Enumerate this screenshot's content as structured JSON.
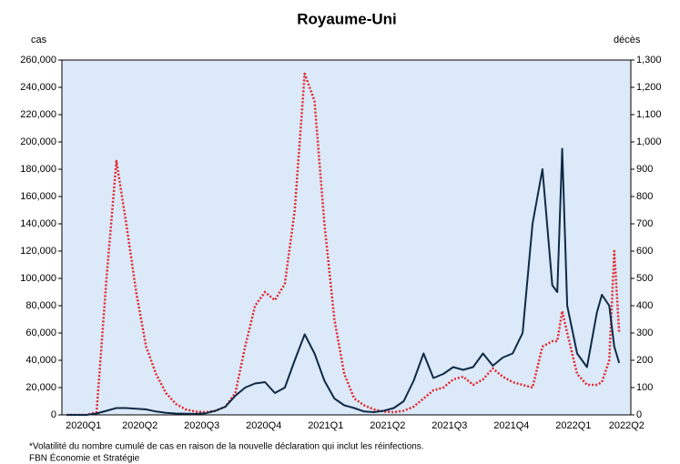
{
  "chart_data": {
    "type": "line",
    "title": "Royaume-Uni",
    "y_label": "cas",
    "y2_label": "décès",
    "notes": [
      "*Volatilité du nombre cumulé de cas en raison de la nouvelle déclaration qui inclut les réinfections.",
      "FBN Économie et Stratégie"
    ],
    "background": "#dce9f8",
    "x": [
      2020.08,
      2020.12,
      2020.16,
      2020.2,
      2020.24,
      2020.28,
      2020.32,
      2020.36,
      2020.4,
      2020.44,
      2020.48,
      2020.52,
      2020.56,
      2020.6,
      2020.64,
      2020.68,
      2020.72,
      2020.76,
      2020.8,
      2020.84,
      2020.88,
      2020.92,
      2020.96,
      2021.0,
      2021.04,
      2021.08,
      2021.12,
      2021.16,
      2021.2,
      2021.24,
      2021.28,
      2021.32,
      2021.36,
      2021.4,
      2021.44,
      2021.48,
      2021.52,
      2021.56,
      2021.6,
      2021.64,
      2021.68,
      2021.72,
      2021.76,
      2021.8,
      2021.84,
      2021.88,
      2021.92,
      2021.96,
      2022.0,
      2022.04,
      2022.06,
      2022.08,
      2022.1,
      2022.14,
      2022.18,
      2022.22,
      2022.24,
      2022.27,
      2022.29,
      2022.31
    ],
    "series": [
      {
        "name": "cas",
        "color": "#0e2a47",
        "dash": "solid",
        "values": [
          0,
          0,
          0,
          1000,
          3000,
          5000,
          5000,
          4500,
          4000,
          2500,
          1500,
          1000,
          800,
          700,
          1200,
          3000,
          6000,
          14000,
          20000,
          23000,
          24000,
          16000,
          20000,
          40000,
          59000,
          45000,
          25000,
          12000,
          7000,
          5000,
          2500,
          2000,
          3000,
          5000,
          10000,
          25000,
          45000,
          27000,
          30000,
          35000,
          33000,
          35000,
          45000,
          36000,
          42000,
          45000,
          60000,
          140000,
          180000,
          95000,
          90000,
          195000,
          80000,
          45000,
          35000,
          75000,
          88000,
          80000,
          50000,
          38000
        ]
      },
      {
        "name": "décès",
        "color": "#e3262c",
        "dash": "dotted",
        "axis": "y2",
        "values": [
          0,
          0,
          0,
          10,
          500,
          930,
          700,
          450,
          250,
          150,
          80,
          40,
          20,
          12,
          10,
          15,
          30,
          80,
          250,
          400,
          450,
          420,
          480,
          750,
          1250,
          1150,
          700,
          350,
          150,
          60,
          35,
          20,
          12,
          10,
          15,
          30,
          60,
          90,
          100,
          130,
          140,
          110,
          130,
          170,
          140,
          120,
          110,
          100,
          250,
          270,
          270,
          380,
          300,
          150,
          110,
          110,
          120,
          200,
          600,
          300
        ]
      }
    ],
    "xlim": [
      2020.06,
      2022.357
    ],
    "xticks": [
      {
        "value": 2020.147,
        "label": "2020Q1"
      },
      {
        "value": 2020.375,
        "label": "2020Q2"
      },
      {
        "value": 2020.625,
        "label": "2020Q3"
      },
      {
        "value": 2020.875,
        "label": "2020Q4"
      },
      {
        "value": 2021.125,
        "label": "2021Q1"
      },
      {
        "value": 2021.375,
        "label": "2021Q2"
      },
      {
        "value": 2021.625,
        "label": "2021Q3"
      },
      {
        "value": 2021.875,
        "label": "2021Q4"
      },
      {
        "value": 2022.125,
        "label": "2022Q1"
      },
      {
        "value": 2022.34,
        "label": "2022Q2"
      }
    ],
    "ylim": [
      0,
      260000
    ],
    "yticks": [
      0,
      {
        "value": 20000,
        "label": "20,000"
      },
      {
        "value": 40000,
        "label": "40,000"
      },
      {
        "value": 60000,
        "label": "60,000"
      },
      {
        "value": 80000,
        "label": "80,000"
      },
      {
        "value": 100000,
        "label": "100,000"
      },
      {
        "value": 120000,
        "label": "120,000"
      },
      {
        "value": 140000,
        "label": "140,000"
      },
      {
        "value": 160000,
        "label": "160,000"
      },
      {
        "value": 180000,
        "label": "180,000"
      },
      {
        "value": 200000,
        "label": "200,000"
      },
      {
        "value": 220000,
        "label": "220,000"
      },
      {
        "value": 240000,
        "label": "240,000"
      },
      {
        "value": 260000,
        "label": "260,000"
      }
    ],
    "y2lim": [
      0,
      1300
    ],
    "y2ticks": [
      0,
      100,
      200,
      300,
      400,
      500,
      600,
      700,
      800,
      900,
      {
        "value": 1000,
        "label": "1,000"
      },
      {
        "value": 1100,
        "label": "1,100"
      },
      {
        "value": 1200,
        "label": "1,200"
      },
      {
        "value": 1300,
        "label": "1,300"
      }
    ]
  }
}
